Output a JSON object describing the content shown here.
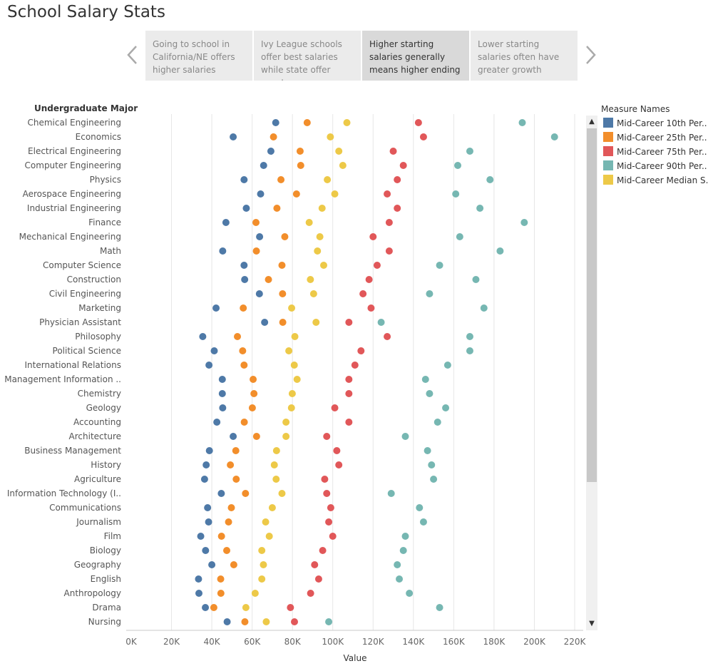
{
  "title": "School Salary Stats",
  "story_points": [
    {
      "label": "Going to school in California/NE offers higher salaries",
      "active": false
    },
    {
      "label": "Ivy League schools offer best salaries while state offer worst",
      "active": false
    },
    {
      "label": "Higher starting salaries generally means higher ending",
      "active": true
    },
    {
      "label": "Lower starting salaries often have greater growth",
      "active": false
    }
  ],
  "icons": {
    "prev": "chevron-left-icon",
    "next": "chevron-right-icon"
  },
  "row_header": "Undergraduate Major",
  "legend": {
    "title": "Measure Names",
    "items": [
      {
        "label": "Mid-Career 10th Per..",
        "color": "#4e79a7"
      },
      {
        "label": "Mid-Career 25th Per..",
        "color": "#f28e2b"
      },
      {
        "label": "Mid-Career 75th Per..",
        "color": "#e15759"
      },
      {
        "label": "Mid-Career 90th Per..",
        "color": "#76b7b2"
      },
      {
        "label": "Mid-Career Median S..",
        "color": "#edc948"
      }
    ]
  },
  "chart_data": {
    "type": "scatter",
    "xlabel": "Value",
    "xlim": [
      0,
      220000
    ],
    "xticks": [
      {
        "value": 0,
        "label": "0K"
      },
      {
        "value": 20000,
        "label": "20K"
      },
      {
        "value": 40000,
        "label": "40K"
      },
      {
        "value": 60000,
        "label": "60K"
      },
      {
        "value": 80000,
        "label": "80K"
      },
      {
        "value": 100000,
        "label": "100K"
      },
      {
        "value": 120000,
        "label": "120K"
      },
      {
        "value": 140000,
        "label": "140K"
      },
      {
        "value": 160000,
        "label": "160K"
      },
      {
        "value": 180000,
        "label": "180K"
      },
      {
        "value": 200000,
        "label": "200K"
      },
      {
        "value": 220000,
        "label": "220K"
      }
    ],
    "grid": true,
    "legend_placement": "right",
    "series": [
      {
        "name": "Mid-Career 10th Per..",
        "color": "#4e79a7",
        "values": [
          71700,
          50600,
          69300,
          65700,
          56000,
          64200,
          57100,
          47000,
          63700,
          45400,
          56000,
          56300,
          63600,
          42100,
          66200,
          35500,
          41200,
          38600,
          45200,
          45200,
          45400,
          42500,
          50600,
          38800,
          37200,
          36400,
          44700,
          37900,
          38400,
          34500,
          36900,
          40000,
          33400,
          33600,
          36800,
          47600
        ]
      },
      {
        "name": "Mid-Career 25th Per..",
        "color": "#f28e2b",
        "values": [
          87300,
          70600,
          83800,
          84100,
          74300,
          82000,
          72300,
          61900,
          76200,
          62100,
          74800,
          68100,
          75100,
          55600,
          75200,
          52700,
          55300,
          56000,
          60500,
          60900,
          60100,
          56100,
          62200,
          51900,
          49200,
          52100,
          56700,
          49700,
          48300,
          44800,
          47400,
          50900,
          44400,
          44500,
          41000,
          56400
        ]
      },
      {
        "name": "Mid-Career 75th Per..",
        "color": "#e15759",
        "values": [
          142500,
          145000,
          130000,
          135000,
          132000,
          127000,
          132000,
          128000,
          120000,
          128000,
          122000,
          118000,
          115000,
          119000,
          108000,
          127000,
          114000,
          111000,
          108000,
          108000,
          101000,
          108000,
          97000,
          102000,
          103000,
          96000,
          97000,
          99000,
          98000,
          100000,
          95000,
          91000,
          93000,
          89000,
          79000,
          81000
        ]
      },
      {
        "name": "Mid-Career 90th Per..",
        "color": "#76b7b2",
        "values": [
          194000,
          210000,
          168000,
          162000,
          178000,
          161000,
          173000,
          195000,
          163000,
          183000,
          153000,
          171000,
          148000,
          175000,
          124000,
          168000,
          168000,
          157000,
          146000,
          148000,
          156000,
          152000,
          136000,
          147000,
          149000,
          150000,
          129000,
          143000,
          145000,
          136000,
          135000,
          132000,
          133000,
          138000,
          153000,
          98000
        ]
      },
      {
        "name": "Mid-Career Median S..",
        "color": "#edc948",
        "values": [
          107000,
          98800,
          103000,
          105000,
          97300,
          101000,
          94700,
          88300,
          93600,
          92400,
          95500,
          88900,
          90500,
          79600,
          91700,
          81200,
          78200,
          80900,
          82300,
          79900,
          79500,
          76800,
          76800,
          72100,
          71000,
          71900,
          74800,
          70000,
          66700,
          68500,
          64800,
          65600,
          64800,
          61500,
          56900,
          67000
        ]
      }
    ],
    "categories": [
      "Chemical Engineering",
      "Economics",
      "Electrical Engineering",
      "Computer Engineering",
      "Physics",
      "Aerospace Engineering",
      "Industrial Engineering",
      "Finance",
      "Mechanical Engineering",
      "Math",
      "Computer Science",
      "Construction",
      "Civil Engineering",
      "Marketing",
      "Physician Assistant",
      "Philosophy",
      "Political Science",
      "International Relations",
      "Management Information ..",
      "Chemistry",
      "Geology",
      "Accounting",
      "Architecture",
      "Business Management",
      "History",
      "Agriculture",
      "Information Technology (I..",
      "Communications",
      "Journalism",
      "Film",
      "Biology",
      "Geography",
      "English",
      "Anthropology",
      "Drama",
      "Nursing"
    ]
  }
}
